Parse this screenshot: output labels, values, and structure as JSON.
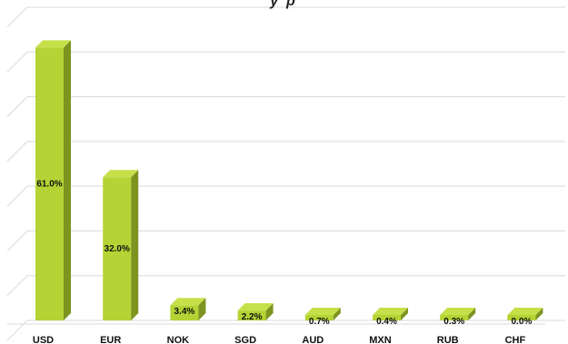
{
  "chart_data": {
    "type": "bar",
    "title_visible_fragment": "y  p",
    "categories": [
      "USD",
      "EUR",
      "NOK",
      "SGD",
      "AUD",
      "MXN",
      "RUB",
      "CHF"
    ],
    "values": [
      61.0,
      32.0,
      3.4,
      2.2,
      0.7,
      0.4,
      0.3,
      0.0
    ],
    "data_labels": [
      "61.0%",
      "32.0%",
      "3.4%",
      "2.2%",
      "0.7%",
      "0.4%",
      "0.3%",
      "0.0%"
    ],
    "unit": "%",
    "ylim": [
      0,
      70
    ],
    "grid": true,
    "colors": {
      "bar_front": "#b5d334",
      "bar_side": "#7d9420",
      "bar_top": "#c6e04a",
      "grid": "#d9d9d9"
    }
  }
}
